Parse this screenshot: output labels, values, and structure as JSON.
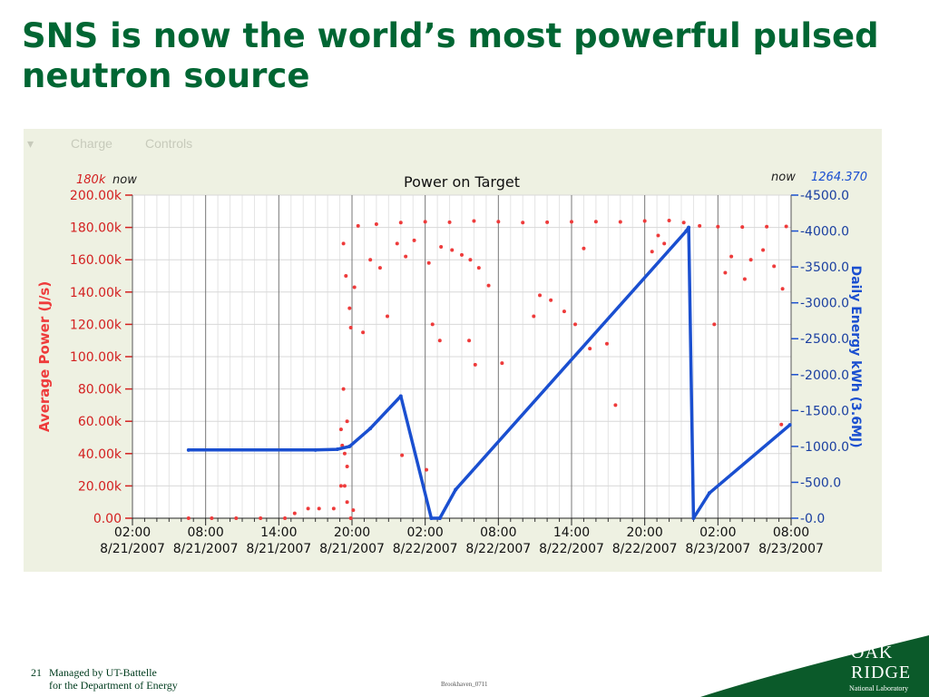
{
  "slide": {
    "title": "SNS is now the world’s most powerful pulsed neutron source",
    "page_number": "21",
    "footer_line1": "Managed by UT-Battelle",
    "footer_line2": "for the Department of Energy",
    "code": "Brookhaven_0711",
    "logo": {
      "line1": "OAK",
      "line2": "RIDGE",
      "line3": "National Laboratory"
    }
  },
  "tabs": [
    "Charge",
    "Controls"
  ],
  "colors": {
    "power": "#ee3b3b",
    "energy": "#1a4fd0",
    "title": "#006633"
  },
  "chart_data": {
    "type": "scatter",
    "title": "Power on Target",
    "ylabel": "Average Power (J/s)",
    "y2label": "Daily Energy kWh (3.6MJ)",
    "left_marker": "180k",
    "left_now": "now",
    "right_now": "now",
    "right_marker": "1264.370",
    "ylim": [
      0,
      200000
    ],
    "y2lim": [
      0,
      4500
    ],
    "xlim": [
      2,
      56
    ],
    "y_ticks": [
      {
        "v": 0,
        "label": "0.00"
      },
      {
        "v": 20000,
        "label": "20.00k"
      },
      {
        "v": 40000,
        "label": "40.00k"
      },
      {
        "v": 60000,
        "label": "60.00k"
      },
      {
        "v": 80000,
        "label": "80.00k"
      },
      {
        "v": 100000,
        "label": "100.00k"
      },
      {
        "v": 120000,
        "label": "120.00k"
      },
      {
        "v": 140000,
        "label": "140.00k"
      },
      {
        "v": 160000,
        "label": "160.00k"
      },
      {
        "v": 180000,
        "label": "180.00k"
      },
      {
        "v": 200000,
        "label": "200.00k"
      }
    ],
    "y2_ticks": [
      {
        "v": 0,
        "label": "0.0"
      },
      {
        "v": 500,
        "label": "500.0"
      },
      {
        "v": 1000,
        "label": "1000.0"
      },
      {
        "v": 1500,
        "label": "1500.0"
      },
      {
        "v": 2000,
        "label": "2000.0"
      },
      {
        "v": 2500,
        "label": "2500.0"
      },
      {
        "v": 3000,
        "label": "3000.0"
      },
      {
        "v": 3500,
        "label": "3500.0"
      },
      {
        "v": 4000,
        "label": "4000.0"
      },
      {
        "v": 4500,
        "label": "4500.0"
      }
    ],
    "x_ticks": [
      {
        "h": 2,
        "time": "02:00",
        "date": "8/21/2007"
      },
      {
        "h": 8,
        "time": "08:00",
        "date": "8/21/2007"
      },
      {
        "h": 14,
        "time": "14:00",
        "date": "8/21/2007"
      },
      {
        "h": 20,
        "time": "20:00",
        "date": "8/21/2007"
      },
      {
        "h": 26,
        "time": "02:00",
        "date": "8/22/2007"
      },
      {
        "h": 32,
        "time": "08:00",
        "date": "8/22/2007"
      },
      {
        "h": 38,
        "time": "14:00",
        "date": "8/22/2007"
      },
      {
        "h": 44,
        "time": "20:00",
        "date": "8/22/2007"
      },
      {
        "h": 50,
        "time": "02:00",
        "date": "8/23/2007"
      },
      {
        "h": 56,
        "time": "08:00",
        "date": "8/23/2007"
      }
    ],
    "series": [
      {
        "name": "Average Power (J/s)",
        "axis": "left",
        "style": "points",
        "x": [
          6.6,
          8.5,
          10.5,
          12.5,
          14.5,
          15.3,
          16.4,
          17.3,
          18.5,
          19.1,
          19.4,
          19.6,
          20.5,
          22,
          24,
          26,
          28,
          30,
          32,
          34,
          36,
          38,
          40,
          42,
          44,
          46,
          47.2,
          48.5,
          50,
          52,
          54,
          55.6,
          19.3,
          19.5,
          19.8,
          19.9,
          20.2,
          21.5,
          22.3,
          23.7,
          24.4,
          25.1,
          26.3,
          27.3,
          28.2,
          29.0,
          29.7,
          30.4,
          31.2,
          35.4,
          39.0,
          44.6,
          45.6,
          49.7,
          50.6,
          51.1,
          52.2,
          53.7,
          54.6,
          55.3,
          19.1,
          19.3,
          19.6,
          20.9,
          22.9,
          26.6,
          30.1,
          32.3,
          36.3,
          37.4,
          38.3,
          39.5,
          45.1,
          52.7,
          55.2,
          19.2,
          19.4,
          19.6,
          19.9,
          20.1,
          27.2,
          29.6,
          34.9,
          41.6,
          24.1,
          26.1,
          27.2,
          40.9
        ],
        "values": [
          0,
          0,
          0,
          0,
          0,
          3000,
          6000,
          6000,
          6000,
          20000,
          40000,
          60000,
          181000,
          182000,
          183000,
          183500,
          183200,
          184000,
          183600,
          183000,
          183200,
          183500,
          183600,
          183400,
          184000,
          184300,
          183000,
          181000,
          180500,
          180300,
          180500,
          180600,
          170000,
          150000,
          130000,
          118000,
          143000,
          160000,
          155000,
          170000,
          162000,
          172000,
          158000,
          168000,
          166000,
          163000,
          160000,
          155000,
          144000,
          138000,
          167000,
          165000,
          170000,
          120000,
          152000,
          162000,
          148000,
          166000,
          156000,
          142000,
          55000,
          80000,
          32000,
          115000,
          125000,
          120000,
          95000,
          96000,
          135000,
          128000,
          120000,
          105000,
          175000,
          160000,
          58000,
          45000,
          20000,
          10000,
          0,
          5000,
          110000,
          110000,
          125000,
          70000,
          39000,
          30000,
          0,
          108000
        ]
      },
      {
        "name": "Daily Energy kWh (3.6MJ)",
        "axis": "right",
        "style": "line",
        "x": [
          6.6,
          17,
          18.8,
          19.8,
          21.5,
          24,
          26.5,
          27.2,
          28.5,
          47.4,
          47.6,
          48,
          49.3,
          55.9
        ],
        "values": [
          950,
          950,
          960,
          1000,
          1250,
          1700,
          0,
          0,
          400,
          4000,
          4050,
          0,
          350,
          1300
        ]
      }
    ]
  }
}
